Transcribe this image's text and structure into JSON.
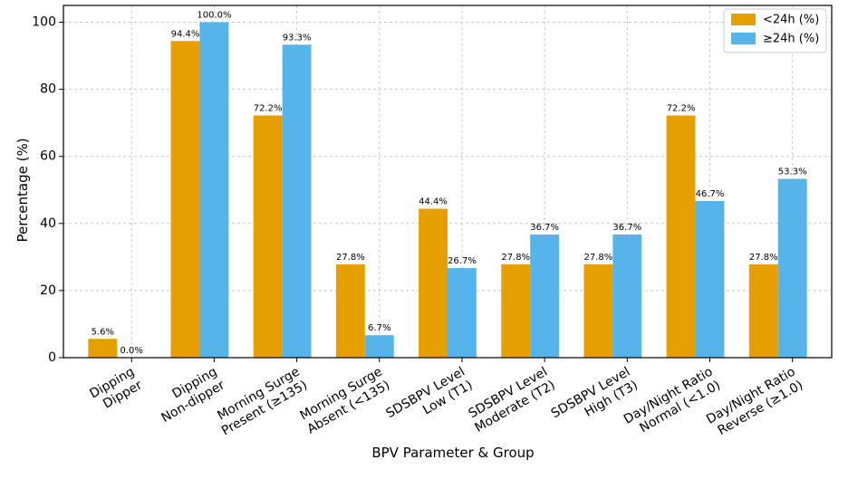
{
  "chart_data": {
    "type": "bar",
    "xlabel": "BPV Parameter & Group",
    "ylabel": "Percentage (%)",
    "ylim": [
      0,
      105
    ],
    "yticks": [
      0,
      20,
      40,
      60,
      80,
      100
    ],
    "grid": true,
    "legend_position": "top-right",
    "categories": [
      [
        "Dipping",
        "Dipper"
      ],
      [
        "Dipping",
        "Non-dipper"
      ],
      [
        "Morning Surge",
        "Present (≥135)"
      ],
      [
        "Morning Surge",
        "Absent (<135)"
      ],
      [
        "SDSBPV Level",
        "Low (T1)"
      ],
      [
        "SDSBPV Level",
        "Moderate (T2)"
      ],
      [
        "SDSBPV Level",
        "High (T3)"
      ],
      [
        "Day/Night Ratio",
        "Normal (<1.0)"
      ],
      [
        "Day/Night Ratio",
        "Reverse (≥1.0)"
      ]
    ],
    "series": [
      {
        "name": "<24h (%)",
        "color": "#E69F00",
        "values": [
          5.6,
          94.4,
          72.2,
          27.8,
          44.4,
          27.8,
          27.8,
          72.2,
          27.8
        ],
        "labels": [
          "5.6%",
          "94.4%",
          "72.2%",
          "27.8%",
          "44.4%",
          "27.8%",
          "27.8%",
          "72.2%",
          "27.8%"
        ]
      },
      {
        "name": "≥24h (%)",
        "color": "#56B4E9",
        "values": [
          0.0,
          100.0,
          93.3,
          6.7,
          26.7,
          36.7,
          36.7,
          46.7,
          53.3
        ],
        "labels": [
          "0.0%",
          "100.0%",
          "93.3%",
          "6.7%",
          "26.7%",
          "36.7%",
          "36.7%",
          "46.7%",
          "53.3%"
        ]
      }
    ]
  }
}
